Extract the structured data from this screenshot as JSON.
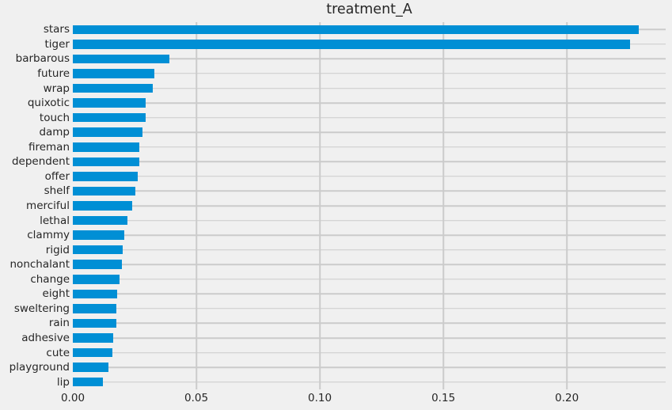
{
  "chart_data": {
    "type": "bar",
    "orientation": "horizontal",
    "title": "treatment_A",
    "xlabel": "",
    "ylabel": "",
    "categories": [
      "stars",
      "tiger",
      "barbarous",
      "future",
      "wrap",
      "quixotic",
      "touch",
      "damp",
      "fireman",
      "dependent",
      "offer",
      "shelf",
      "merciful",
      "lethal",
      "clammy",
      "rigid",
      "nonchalant",
      "change",
      "eight",
      "sweltering",
      "rain",
      "adhesive",
      "cute",
      "playground",
      "lip"
    ],
    "values": [
      0.229,
      0.2255,
      0.039,
      0.033,
      0.0324,
      0.0296,
      0.0295,
      0.0282,
      0.027,
      0.0269,
      0.0263,
      0.0253,
      0.0239,
      0.0221,
      0.0208,
      0.0203,
      0.0199,
      0.0189,
      0.0179,
      0.0176,
      0.0175,
      0.0163,
      0.016,
      0.0144,
      0.0121
    ],
    "xlim": [
      0,
      0.24
    ],
    "xticks": [
      0,
      0.05,
      0.1,
      0.15,
      0.2
    ],
    "xtick_labels": [
      "0.00",
      "0.05",
      "0.10",
      "0.15",
      "0.20"
    ],
    "grid": true,
    "legend": false,
    "style": {
      "background_color": "#f0f0f0",
      "bar_color": "#008fd5",
      "grid_color": "#cbcbcb",
      "text_color": "#262626"
    }
  }
}
